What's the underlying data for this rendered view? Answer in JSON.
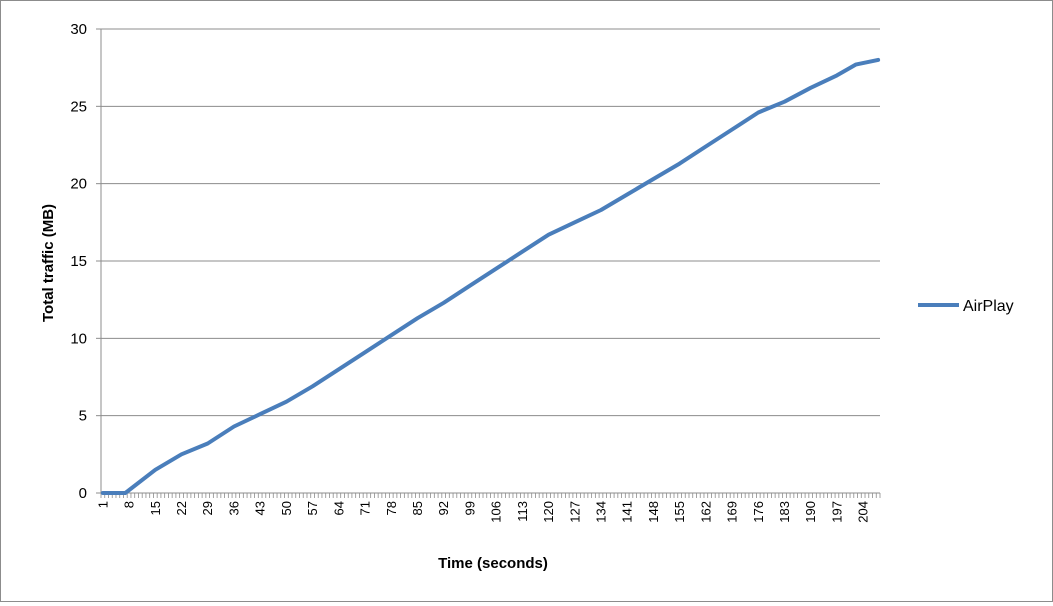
{
  "chart_data": {
    "type": "line",
    "title": "",
    "xlabel": "Time (seconds)",
    "ylabel": "Total traffic (MB)",
    "ylim": [
      0,
      30
    ],
    "yticks": [
      "0",
      "5",
      "10",
      "15",
      "20",
      "25",
      "30"
    ],
    "grid": "horizontal",
    "legend_position": "right",
    "x_count": 208,
    "x_tick_labels": [
      "1",
      "8",
      "15",
      "22",
      "29",
      "36",
      "43",
      "50",
      "57",
      "64",
      "71",
      "78",
      "85",
      "92",
      "99",
      "106",
      "113",
      "120",
      "127",
      "134",
      "141",
      "148",
      "155",
      "162",
      "169",
      "176",
      "183",
      "190",
      "197",
      "204"
    ],
    "series": [
      {
        "name": "AirPlay",
        "color": "#4a7ebb",
        "x": [
          1,
          7,
          15,
          22,
          29,
          36,
          43,
          50,
          57,
          64,
          71,
          78,
          85,
          92,
          99,
          106,
          113,
          120,
          127,
          134,
          141,
          148,
          155,
          162,
          169,
          176,
          183,
          190,
          197,
          202,
          208
        ],
        "values": [
          0.0,
          0.0,
          1.5,
          2.5,
          3.2,
          4.3,
          5.1,
          5.9,
          6.9,
          8.0,
          9.1,
          10.2,
          11.3,
          12.3,
          13.4,
          14.5,
          15.6,
          16.7,
          17.5,
          18.3,
          19.3,
          20.3,
          21.3,
          22.4,
          23.5,
          24.6,
          25.3,
          26.2,
          27.0,
          27.7,
          28.0
        ]
      }
    ]
  },
  "colors": {
    "gridline": "#8c8c8c",
    "axis": "#8c8c8c",
    "series": "#4a7ebb"
  }
}
